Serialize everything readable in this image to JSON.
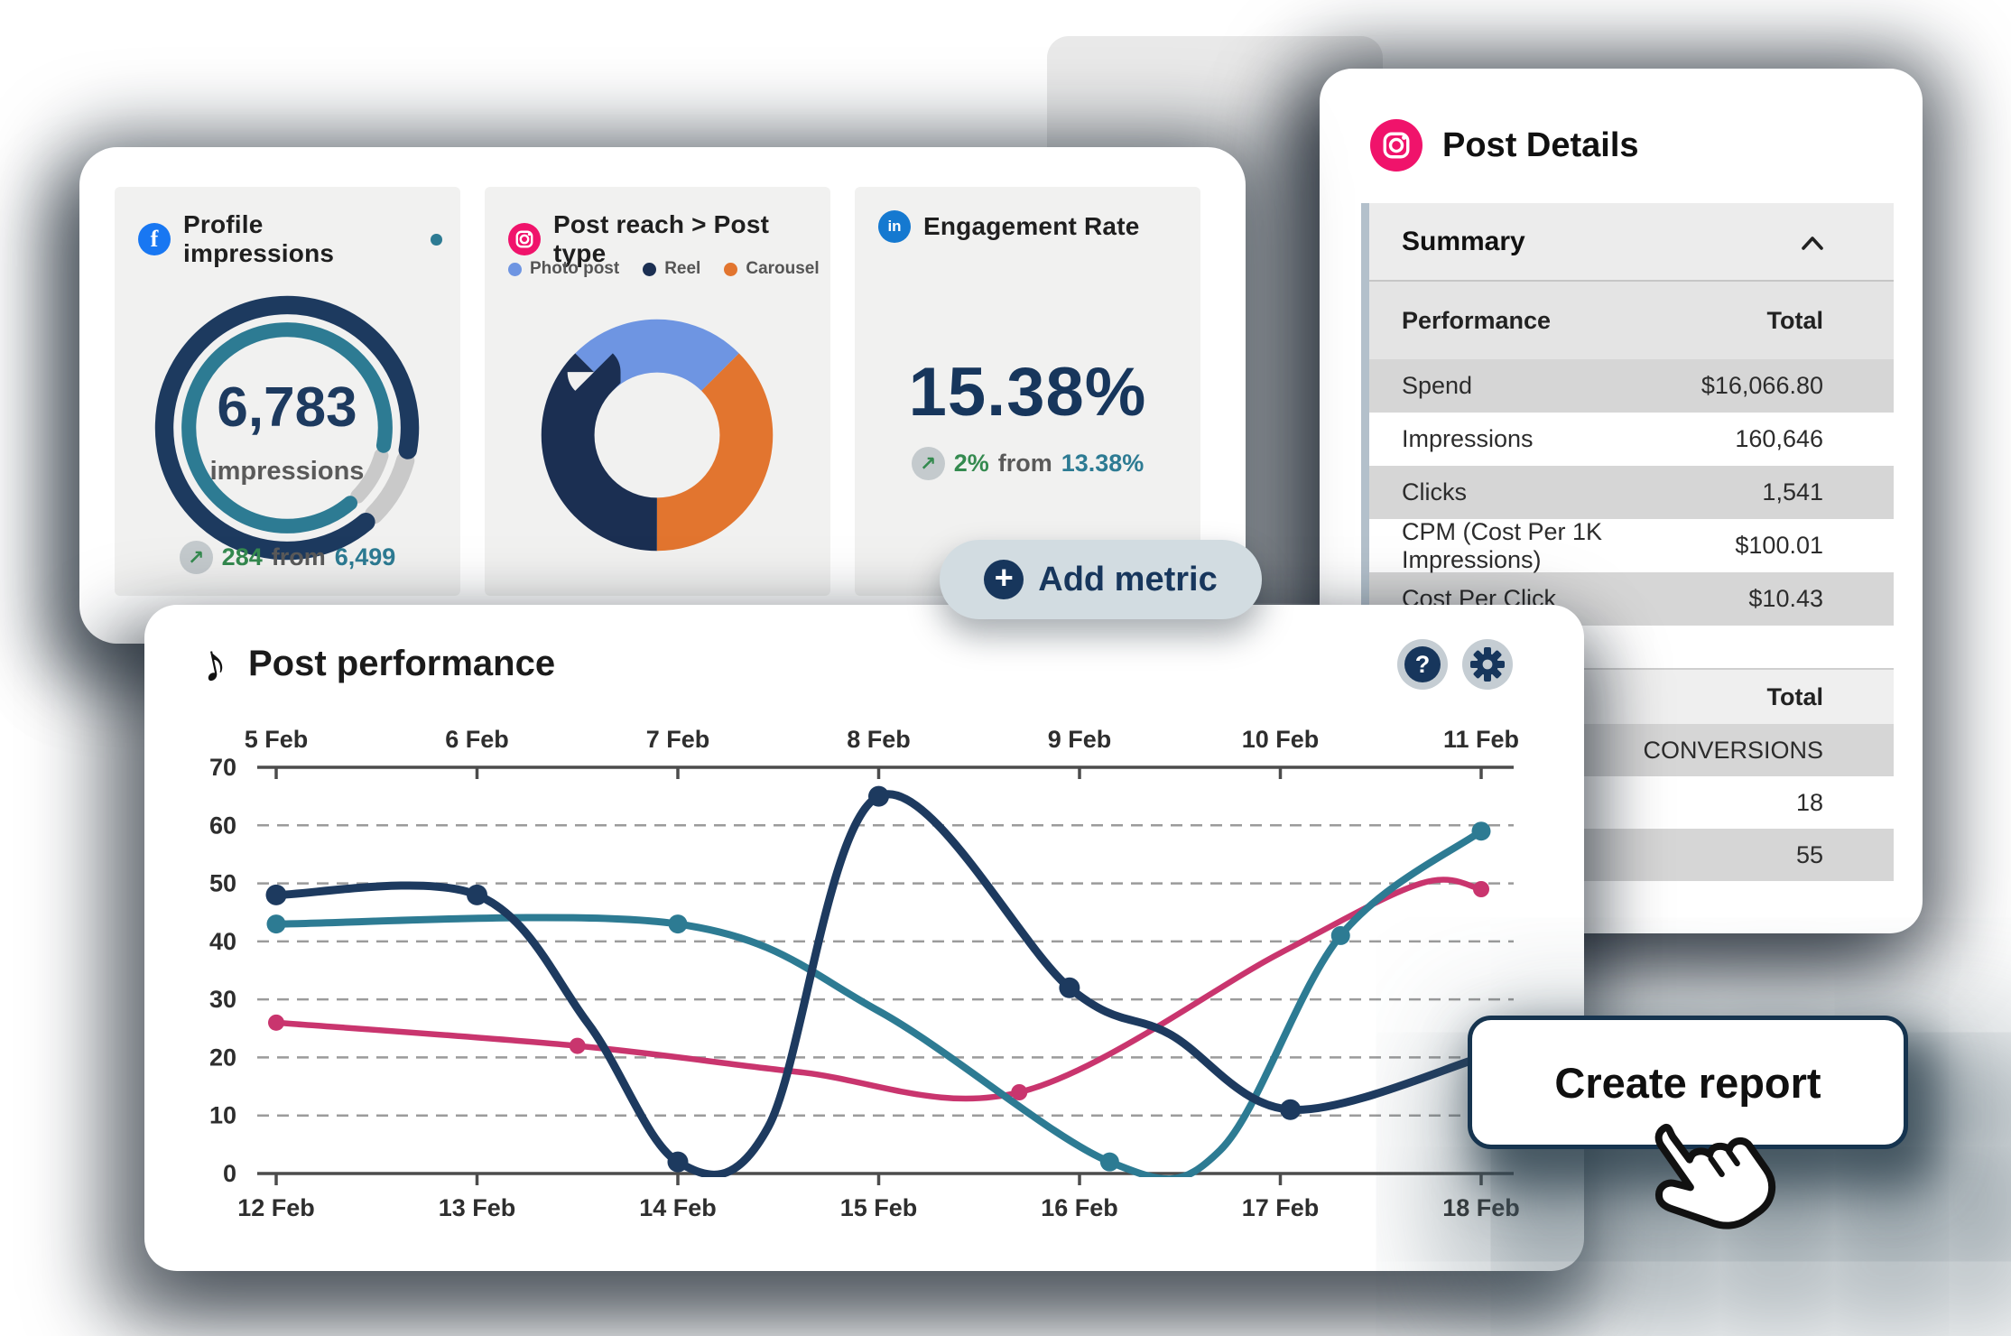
{
  "colors": {
    "navy": "#1d3a5f",
    "teal": "#2d7b93",
    "pink": "#c9356e",
    "green": "#348a4f",
    "orange": "#e2752f",
    "light_blue": "#6e95e2",
    "facebook": "#1877f2",
    "instagram": "#f0136b",
    "linkedin": "#1579d0",
    "pill_bg": "#d2dce1"
  },
  "cards_panel": {
    "cards": [
      {
        "platform": "facebook",
        "title": "Profile impressions",
        "gauge": {
          "percent": 0.89,
          "value": "6,783",
          "unit": "impressions"
        },
        "delta": {
          "arrow": "↗",
          "change": "284",
          "from_word": "from",
          "previous": "6,499"
        }
      },
      {
        "platform": "instagram",
        "title": "Post reach > Post type",
        "legend": [
          {
            "label": "Photo post",
            "color": "#6e95e2"
          },
          {
            "label": "Reel",
            "color": "#1b2f52"
          },
          {
            "label": "Carousel",
            "color": "#e2752f"
          }
        ],
        "donut": {
          "segments": [
            {
              "label": "Photo post",
              "percent": 25,
              "color": "#6e95e2"
            },
            {
              "label": "Carousel",
              "percent": 37.5,
              "color": "#e2752f"
            },
            {
              "label": "Reel",
              "percent": 37.5,
              "color": "#1b2f52"
            }
          ]
        }
      },
      {
        "platform": "linkedin",
        "title": "Engagement Rate",
        "value": "15.38%",
        "delta": {
          "arrow": "↗",
          "change": "2%",
          "from_word": "from",
          "previous": "13.38%"
        }
      }
    ]
  },
  "add_metric": {
    "label": "Add metric",
    "plus": "+"
  },
  "post_details": {
    "title": "Post Details",
    "summary_header": "Summary",
    "summary_table": {
      "columns": [
        "Performance",
        "Total"
      ],
      "rows": [
        [
          "Spend",
          "$16,066.80"
        ],
        [
          "Impressions",
          "160,646"
        ],
        [
          "Clicks",
          "1,541"
        ],
        [
          "CPM (Cost Per 1K Impressions)",
          "$100.01"
        ],
        [
          "Cost Per Click",
          "$10.43"
        ]
      ]
    },
    "totals_table": {
      "column": "Total",
      "values": [
        "CONVERSIONS",
        "18",
        "55"
      ]
    }
  },
  "post_performance": {
    "title": "Post performance",
    "help_label": "?",
    "chart_data": {
      "type": "line",
      "x_axis_top": {
        "labels": [
          "5 Feb",
          "6 Feb",
          "7 Feb",
          "8 Feb",
          "9 Feb",
          "10 Feb",
          "11 Feb"
        ]
      },
      "x_axis_bottom": {
        "labels": [
          "12 Feb",
          "13 Feb",
          "14 Feb",
          "15 Feb",
          "16 Feb",
          "17 Feb",
          "18 Feb"
        ]
      },
      "y_axis": {
        "min": 0,
        "max": 70,
        "ticks": [
          70,
          60,
          50,
          40,
          30,
          20,
          10,
          0
        ],
        "gridlines": [
          60,
          50,
          40,
          30,
          20,
          10
        ]
      },
      "grid": "dashed-horizontal",
      "legend_position": "none",
      "series": [
        {
          "name": "series-pink",
          "color": "#c9356e",
          "points": [
            {
              "x": 0,
              "y": 26,
              "marker": true
            },
            {
              "x": 1.5,
              "y": 22,
              "marker": true
            },
            {
              "x": 2.6,
              "y": 17.5,
              "marker": false
            },
            {
              "x": 3.7,
              "y": 14,
              "marker": true
            },
            {
              "x": 5,
              "y": 38,
              "marker": false
            },
            {
              "x": 5.7,
              "y": 50,
              "marker": false
            },
            {
              "x": 6,
              "y": 49,
              "marker": true
            }
          ]
        },
        {
          "name": "series-teal",
          "color": "#2d7b93",
          "points": [
            {
              "x": 0,
              "y": 43,
              "marker": true
            },
            {
              "x": 2,
              "y": 43,
              "marker": true
            },
            {
              "x": 3,
              "y": 28,
              "marker": false
            },
            {
              "x": 4.15,
              "y": 2,
              "marker": true
            },
            {
              "x": 4.7,
              "y": 4,
              "marker": false
            },
            {
              "x": 5.3,
              "y": 41,
              "marker": true
            },
            {
              "x": 6,
              "y": 59,
              "marker": true
            }
          ]
        },
        {
          "name": "series-navy",
          "color": "#1d3a5f",
          "points": [
            {
              "x": 0,
              "y": 48,
              "marker": true
            },
            {
              "x": 1,
              "y": 48,
              "marker": true
            },
            {
              "x": 1.55,
              "y": 26,
              "marker": false
            },
            {
              "x": 2,
              "y": 2,
              "marker": true
            },
            {
              "x": 2.45,
              "y": 8,
              "marker": false
            },
            {
              "x": 3,
              "y": 65,
              "marker": true
            },
            {
              "x": 3.95,
              "y": 32,
              "marker": true
            },
            {
              "x": 4.45,
              "y": 24,
              "marker": false
            },
            {
              "x": 5.05,
              "y": 11,
              "marker": true
            },
            {
              "x": 6,
              "y": 20,
              "marker": false
            }
          ]
        }
      ]
    }
  },
  "create_report": {
    "label": "Create report"
  }
}
